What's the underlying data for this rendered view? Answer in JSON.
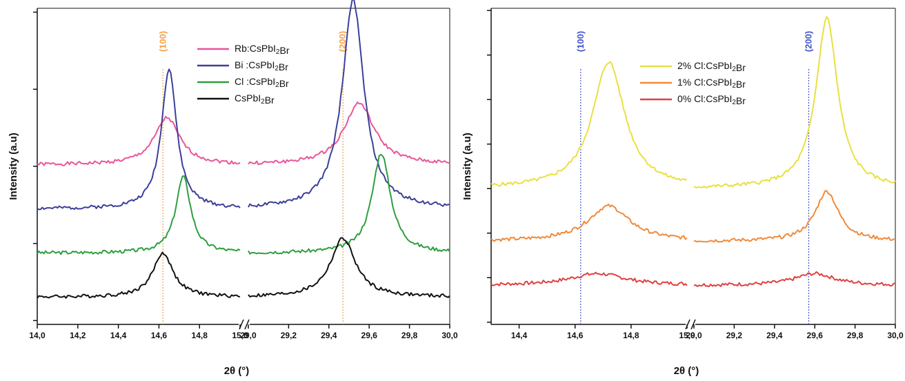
{
  "chart_data": [
    {
      "type": "line",
      "panel": "left",
      "xlabel": "2θ (°)",
      "ylabel": "Intensity (a.u)",
      "broken_x_axis": true,
      "segments": [
        {
          "xlim": [
            14.0,
            15.0
          ],
          "ticks": [
            "14,0",
            "14,2",
            "14,4",
            "14,6",
            "14,8",
            "15,0"
          ]
        },
        {
          "xlim": [
            29.0,
            30.0
          ],
          "ticks": [
            "29,0",
            "29,2",
            "29,4",
            "29,6",
            "29,8",
            "30,0"
          ]
        }
      ],
      "ylim": [
        0,
        100
      ],
      "legend_position": "top-center",
      "reference_lines": [
        {
          "label": "(100)",
          "x": 14.62,
          "segment": 0,
          "color": "#f5a04a"
        },
        {
          "label": "(200)",
          "x": 29.47,
          "segment": 1,
          "color": "#f5a04a"
        }
      ],
      "series": [
        {
          "name": "Rb:CsPbI2Br",
          "color": "#e8559a",
          "baseline": 51,
          "noise_seed": 1,
          "peaks": [
            {
              "segment": 0,
              "center": 14.64,
              "height": 16,
              "width": 0.075
            },
            {
              "segment": 1,
              "center": 29.55,
              "height": 21,
              "width": 0.09
            }
          ]
        },
        {
          "name": "Bi :CsPbI2Br",
          "color": "#3b3f98",
          "baseline": 36,
          "noise_seed": 2,
          "peaks": [
            {
              "segment": 0,
              "center": 14.65,
              "height": 48,
              "width": 0.045
            },
            {
              "segment": 1,
              "center": 29.52,
              "height": 71,
              "width": 0.065
            }
          ]
        },
        {
          "name": "Cl :CsPbI2Br",
          "color": "#2e9e3e",
          "baseline": 21,
          "noise_seed": 3,
          "peaks": [
            {
              "segment": 0,
              "center": 14.72,
              "height": 26,
              "width": 0.045
            },
            {
              "segment": 1,
              "center": 29.66,
              "height": 34,
              "width": 0.055
            }
          ]
        },
        {
          "name": "CsPbI2Br",
          "color": "#111111",
          "baseline": 6,
          "noise_seed": 4,
          "peaks": [
            {
              "segment": 0,
              "center": 14.62,
              "height": 15,
              "width": 0.06
            },
            {
              "segment": 1,
              "center": 29.47,
              "height": 20,
              "width": 0.075
            }
          ]
        }
      ]
    },
    {
      "type": "line",
      "panel": "right",
      "xlabel": "2θ (°)",
      "ylabel": "Intensity (a.u)",
      "broken_x_axis": true,
      "segments": [
        {
          "xlim": [
            14.3,
            15.0
          ],
          "ticks": [
            "14,4",
            "14,6",
            "14,8",
            "15,0"
          ],
          "tick_values": [
            14.4,
            14.6,
            14.8,
            15.0
          ]
        },
        {
          "xlim": [
            29.0,
            30.0
          ],
          "ticks": [
            "29,0",
            "29,2",
            "29,4",
            "29,6",
            "29,8",
            "30,0"
          ]
        }
      ],
      "ylim": [
        0,
        100
      ],
      "legend_position": "top-center",
      "reference_lines": [
        {
          "label": "(100)",
          "x": 14.62,
          "segment": 0,
          "color": "#4455cc"
        },
        {
          "label": "(200)",
          "x": 29.57,
          "segment": 1,
          "color": "#4455cc"
        }
      ],
      "series": [
        {
          "name": "2% Cl:CsPbI2Br",
          "color": "#e8e040",
          "baseline": 43,
          "noise_seed": 5,
          "peaks": [
            {
              "segment": 0,
              "center": 14.72,
              "height": 43,
              "width": 0.07
            },
            {
              "segment": 1,
              "center": 29.66,
              "height": 58,
              "width": 0.065
            }
          ]
        },
        {
          "name": "1% Cl:CsPbI2Br",
          "color": "#f08a3a",
          "baseline": 25,
          "noise_seed": 6,
          "peaks": [
            {
              "segment": 0,
              "center": 14.72,
              "height": 12,
              "width": 0.09
            },
            {
              "segment": 1,
              "center": 29.66,
              "height": 17,
              "width": 0.07
            }
          ]
        },
        {
          "name": "0% Cl:CsPbI2Br",
          "color": "#e04040",
          "baseline": 10,
          "noise_seed": 7,
          "peaks": [
            {
              "segment": 0,
              "center": 14.68,
              "height": 4,
              "width": 0.12
            },
            {
              "segment": 1,
              "center": 29.6,
              "height": 4,
              "width": 0.12
            }
          ]
        }
      ]
    }
  ]
}
